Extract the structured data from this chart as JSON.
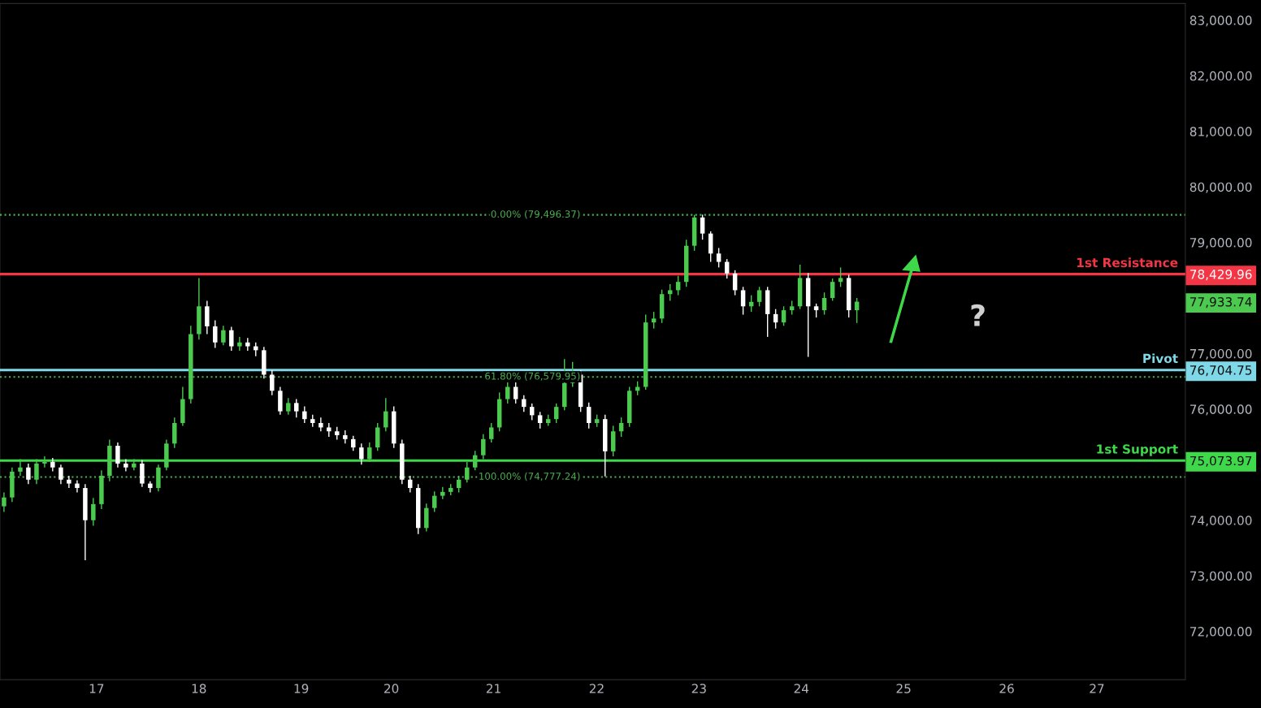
{
  "chart_data": {
    "type": "candlestick",
    "x": [
      16.095,
      16.174,
      16.254,
      16.333,
      16.413,
      16.492,
      16.571,
      16.651,
      16.73,
      16.81,
      16.889,
      16.968,
      17.048,
      17.127,
      17.207,
      17.286,
      17.365,
      17.445,
      17.524,
      17.604,
      17.683,
      17.762,
      17.842,
      17.921,
      18.001,
      18.08,
      18.159,
      18.239,
      18.318,
      18.398,
      18.477,
      18.556,
      18.636,
      18.715,
      18.795,
      18.874,
      18.953,
      19.033,
      19.112,
      19.192,
      19.271,
      19.35,
      19.43,
      19.509,
      19.589,
      19.668,
      19.747,
      19.827,
      19.906,
      19.986,
      20.065,
      20.144,
      20.224,
      20.303,
      20.383,
      20.462,
      20.541,
      20.621,
      20.7,
      20.78,
      20.859,
      20.938,
      21.018,
      21.097,
      21.177,
      21.256,
      21.335,
      21.415,
      21.494,
      21.574,
      21.653,
      21.732,
      21.812,
      21.891,
      21.971,
      22.05,
      22.129,
      22.209,
      22.288,
      22.368,
      22.447,
      22.526,
      22.606,
      22.685,
      22.765,
      22.844,
      22.923,
      23.003,
      23.082,
      23.162,
      23.241,
      23.32,
      23.4,
      23.479,
      23.559,
      23.638,
      23.717,
      23.797,
      23.876,
      23.956,
      24.035,
      24.114,
      24.194,
      24.273,
      24.353,
      24.432
    ],
    "ohlc": [
      [
        74250,
        74500,
        74150,
        74410
      ],
      [
        74410,
        74950,
        74330,
        74875
      ],
      [
        74875,
        75100,
        74800,
        74950
      ],
      [
        74950,
        75020,
        74650,
        74730
      ],
      [
        74730,
        75100,
        74650,
        75020
      ],
      [
        75020,
        75150,
        74950,
        75050
      ],
      [
        75050,
        75120,
        74880,
        74950
      ],
      [
        74950,
        75000,
        74650,
        74730
      ],
      [
        74730,
        74800,
        74580,
        74660
      ],
      [
        74660,
        74720,
        74500,
        74580
      ],
      [
        74580,
        74650,
        73280,
        74000
      ],
      [
        74000,
        74400,
        73900,
        74290
      ],
      [
        74290,
        74900,
        74200,
        74800
      ],
      [
        74800,
        75450,
        74700,
        75340
      ],
      [
        75340,
        75400,
        74950,
        75020
      ],
      [
        75020,
        75100,
        74880,
        74950
      ],
      [
        74950,
        75100,
        74900,
        75020
      ],
      [
        75020,
        75080,
        74600,
        74660
      ],
      [
        74660,
        74700,
        74500,
        74580
      ],
      [
        74580,
        75000,
        74520,
        74950
      ],
      [
        74950,
        75450,
        74900,
        75380
      ],
      [
        75380,
        75850,
        75300,
        75750
      ],
      [
        75750,
        76400,
        75700,
        76180
      ],
      [
        76180,
        77500,
        76100,
        77350
      ],
      [
        77350,
        78360,
        77250,
        77850
      ],
      [
        77850,
        77950,
        77350,
        77490
      ],
      [
        77490,
        77600,
        77100,
        77200
      ],
      [
        77200,
        77500,
        77150,
        77420
      ],
      [
        77420,
        77480,
        77050,
        77130
      ],
      [
        77130,
        77300,
        77050,
        77200
      ],
      [
        77200,
        77280,
        77050,
        77130
      ],
      [
        77130,
        77200,
        76950,
        77060
      ],
      [
        77060,
        77120,
        76550,
        76620
      ],
      [
        76620,
        76700,
        76250,
        76330
      ],
      [
        76330,
        76400,
        75900,
        75960
      ],
      [
        75960,
        76200,
        75900,
        76110
      ],
      [
        76110,
        76180,
        75850,
        75960
      ],
      [
        75960,
        76050,
        75750,
        75820
      ],
      [
        75820,
        75900,
        75680,
        75750
      ],
      [
        75750,
        75850,
        75600,
        75670
      ],
      [
        75670,
        75750,
        75500,
        75600
      ],
      [
        75600,
        75680,
        75450,
        75530
      ],
      [
        75530,
        75620,
        75380,
        75460
      ],
      [
        75460,
        75520,
        75250,
        75310
      ],
      [
        75310,
        75380,
        75000,
        75100
      ],
      [
        75100,
        75400,
        75050,
        75310
      ],
      [
        75310,
        75750,
        75250,
        75670
      ],
      [
        75670,
        76200,
        75600,
        75960
      ],
      [
        75960,
        76050,
        75300,
        75380
      ],
      [
        75380,
        75450,
        74650,
        74730
      ],
      [
        74730,
        74800,
        74500,
        74580
      ],
      [
        74580,
        74650,
        73750,
        73860
      ],
      [
        73860,
        74300,
        73800,
        74220
      ],
      [
        74220,
        74520,
        74150,
        74440
      ],
      [
        74440,
        74600,
        74380,
        74510
      ],
      [
        74510,
        74650,
        74450,
        74580
      ],
      [
        74580,
        74800,
        74500,
        74730
      ],
      [
        74730,
        75050,
        74680,
        74950
      ],
      [
        74950,
        75250,
        74900,
        75170
      ],
      [
        75170,
        75550,
        75100,
        75460
      ],
      [
        75460,
        75750,
        75400,
        75670
      ],
      [
        75670,
        76300,
        75600,
        76180
      ],
      [
        76180,
        76500,
        76100,
        76400
      ],
      [
        76400,
        76480,
        76100,
        76180
      ],
      [
        76180,
        76250,
        75950,
        76040
      ],
      [
        76040,
        76100,
        75800,
        75890
      ],
      [
        75890,
        75950,
        75650,
        75750
      ],
      [
        75750,
        75900,
        75700,
        75820
      ],
      [
        75820,
        76100,
        75750,
        76040
      ],
      [
        76040,
        76900,
        75980,
        76470
      ],
      [
        76470,
        76850,
        76400,
        76620
      ],
      [
        76620,
        76700,
        75950,
        76040
      ],
      [
        76040,
        76120,
        75650,
        75750
      ],
      [
        75750,
        75900,
        75680,
        75820
      ],
      [
        75820,
        75900,
        74790,
        75240
      ],
      [
        75240,
        75700,
        75150,
        75600
      ],
      [
        75600,
        75850,
        75500,
        75750
      ],
      [
        75750,
        76400,
        75680,
        76330
      ],
      [
        76330,
        76500,
        76250,
        76400
      ],
      [
        76400,
        77700,
        76350,
        77560
      ],
      [
        77560,
        77750,
        77450,
        77630
      ],
      [
        77630,
        78150,
        77550,
        78070
      ],
      [
        78070,
        78250,
        77950,
        78140
      ],
      [
        78140,
        78400,
        78050,
        78290
      ],
      [
        78290,
        79050,
        78200,
        78940
      ],
      [
        78940,
        79496,
        78850,
        79450
      ],
      [
        79450,
        79500,
        79050,
        79160
      ],
      [
        79160,
        79200,
        78650,
        78800
      ],
      [
        78800,
        78900,
        78550,
        78650
      ],
      [
        78650,
        78700,
        78350,
        78440
      ],
      [
        78440,
        78500,
        78050,
        78140
      ],
      [
        78140,
        78200,
        77700,
        77850
      ],
      [
        77850,
        78050,
        77750,
        77930
      ],
      [
        77930,
        78200,
        77850,
        78140
      ],
      [
        78140,
        78200,
        77300,
        77710
      ],
      [
        77710,
        77800,
        77450,
        77560
      ],
      [
        77560,
        77850,
        77500,
        77780
      ],
      [
        77780,
        77950,
        77700,
        77850
      ],
      [
        77850,
        78600,
        77800,
        78360
      ],
      [
        78360,
        78450,
        76940,
        77850
      ],
      [
        77850,
        77900,
        77650,
        77780
      ],
      [
        77780,
        78100,
        77700,
        78000
      ],
      [
        78000,
        78350,
        77950,
        78290
      ],
      [
        78290,
        78550,
        78200,
        78360
      ],
      [
        78360,
        78420,
        77650,
        77780
      ],
      [
        77780,
        78000,
        77550,
        77933.74
      ]
    ],
    "xlim": [
      16.056,
      27.643
    ],
    "xticks": [
      17,
      18,
      19,
      {
        "value": 19.881,
        "label": "20"
      },
      {
        "value": 20.881,
        "label": "21"
      },
      {
        "value": 21.889,
        "label": "22"
      },
      {
        "value": 22.889,
        "label": "23"
      },
      {
        "value": 23.889,
        "label": "24"
      },
      {
        "value": 24.889,
        "label": "25"
      },
      {
        "value": 25.897,
        "label": "26"
      },
      {
        "value": 26.778,
        "label": "27"
      }
    ],
    "ylim": [
      71130,
      83300
    ],
    "yticks": [
      {
        "value": 72000,
        "label": "72,000.00"
      },
      {
        "value": 73000,
        "label": "73,000.00"
      },
      {
        "value": 74000,
        "label": "74,000.00"
      },
      {
        "value": 76000,
        "label": "76,000.00"
      },
      {
        "value": 77000,
        "label": "77,000.00"
      },
      {
        "value": 79000,
        "label": "79,000.00"
      },
      {
        "value": 80000,
        "label": "80,000.00"
      },
      {
        "value": 81000,
        "label": "81,000.00"
      },
      {
        "value": 82000,
        "label": "82,000.00"
      },
      {
        "value": 83000,
        "label": "83,000.00"
      },
      {
        "value": 78429.96,
        "label": "78,429.96"
      },
      {
        "value": 77933.74,
        "label": "77,933.74"
      },
      {
        "value": 76704.75,
        "label": "76,704.75"
      },
      {
        "value": 75073.97,
        "label": "75,073.97"
      }
    ],
    "ref_lines": [
      {
        "axis": "y",
        "value": 78429.96,
        "label": "1st Resistance",
        "color": "#f23645",
        "line_style": "solid"
      },
      {
        "axis": "y",
        "value": 76704.75,
        "label": "Pivot",
        "color": "#7fd8e8",
        "line_style": "solid"
      },
      {
        "axis": "y",
        "value": 75073.97,
        "label": "1st Support",
        "color": "#3fd84a",
        "line_style": "solid"
      },
      {
        "axis": "y",
        "value": 79496.37,
        "label": "0.00% (79,496.37)",
        "color": "#4caf50",
        "line_style": "dotted"
      },
      {
        "axis": "y",
        "value": 76579.95,
        "label": "61.80% (76,579.95)",
        "color": "#4caf50",
        "line_style": "dotted"
      },
      {
        "axis": "y",
        "value": 74777.24,
        "label": "100.00% (74,777.24)",
        "color": "#4caf50",
        "line_style": "dotted"
      }
    ],
    "annotations": [
      "?"
    ],
    "grid": false
  }
}
